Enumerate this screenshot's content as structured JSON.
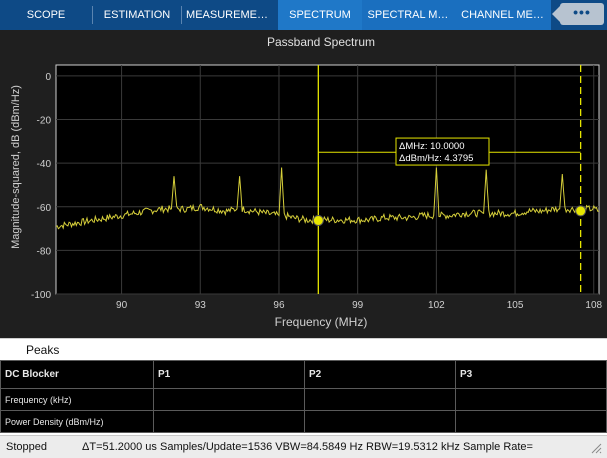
{
  "tabs": [
    {
      "label": "SCOPE",
      "active": false
    },
    {
      "label": "ESTIMATION",
      "active": false
    },
    {
      "label": "MEASUREME…",
      "active": false
    },
    {
      "label": "SPECTRUM",
      "active": true
    },
    {
      "label": "SPECTRAL M…",
      "active": false
    },
    {
      "label": "CHANNEL ME…",
      "active": false
    }
  ],
  "more_label": "•••",
  "chart_data": {
    "type": "line",
    "title": "Passband Spectrum",
    "xlabel": "Frequency (MHz)",
    "ylabel": "Magnitude-squared, dB (dBm/Hz)",
    "xlim": [
      87.5,
      108.2
    ],
    "ylim": [
      -100,
      5
    ],
    "xticks": [
      90,
      93,
      96,
      99,
      102,
      105,
      108
    ],
    "yticks": [
      0,
      -20,
      -40,
      -60,
      -80,
      -100
    ],
    "grid": true,
    "series": [
      {
        "color": "#d6cf3a",
        "x": [
          87.5,
          88.0,
          88.5,
          89.0,
          89.5,
          90.0,
          90.5,
          91.0,
          91.5,
          91.9,
          92.0,
          92.1,
          92.5,
          93.0,
          93.5,
          94.0,
          94.4,
          94.5,
          94.6,
          95.0,
          95.5,
          96.0,
          96.1,
          96.2,
          96.5,
          97.0,
          97.5,
          98.0,
          98.5,
          99.0,
          99.5,
          100.0,
          100.5,
          101.0,
          101.5,
          101.9,
          102.0,
          102.1,
          102.5,
          103.0,
          103.5,
          103.8,
          103.9,
          104.0,
          104.5,
          105.0,
          105.5,
          106.0,
          106.5,
          106.7,
          106.8,
          106.9,
          107.0,
          107.5,
          108.0,
          108.2
        ],
        "y": [
          -69,
          -68,
          -67,
          -66,
          -65,
          -64,
          -63,
          -62,
          -61,
          -61,
          -46,
          -61,
          -61,
          -60,
          -61,
          -62,
          -61,
          -46,
          -61,
          -62,
          -63,
          -64,
          -42,
          -64,
          -65,
          -66,
          -66,
          -66,
          -66,
          -66,
          -66,
          -65,
          -65,
          -65,
          -64,
          -64,
          -42,
          -64,
          -64,
          -63,
          -63,
          -63,
          -43,
          -63,
          -63,
          -63,
          -62,
          -62,
          -61,
          -61,
          -45,
          -61,
          -61,
          -61,
          -61,
          -62
        ]
      }
    ],
    "measurement": {
      "delta_mhz_label": "ΔMHz: 10.0000",
      "delta_dbm_label": "ΔdBm/Hz: 4.3795",
      "cursor1": {
        "x": 97.5,
        "y": -66.3
      },
      "cursor2": {
        "x": 107.5,
        "y": -61.9
      }
    }
  },
  "peaks": {
    "title": "Peaks",
    "columns": [
      "DC Blocker",
      "P1",
      "P2",
      "P3"
    ],
    "rows": [
      {
        "label": "Frequency (kHz)",
        "values": [
          "",
          "",
          ""
        ]
      },
      {
        "label": "Power Density (dBm/Hz)",
        "values": [
          "",
          "",
          ""
        ]
      }
    ]
  },
  "status": {
    "state": "Stopped",
    "info": "ΔT=51.2000 us  Samples/Update=1536  VBW=84.5849 Hz  RBW=19.5312 kHz  Sample Rate="
  },
  "colors": {
    "tab_bar": "#0e4a86",
    "tab_active": "#1f78c8",
    "plot_bg": "#000000",
    "trace": "#d6cf3a",
    "cursor": "#e6e600"
  }
}
